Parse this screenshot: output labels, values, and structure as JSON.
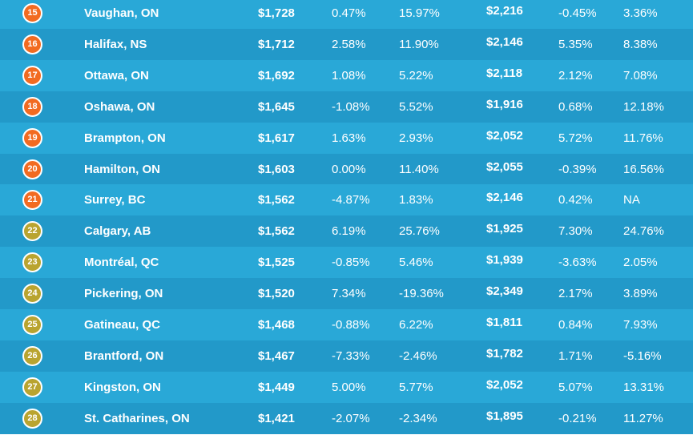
{
  "table": {
    "rows": [
      [
        "15",
        "Vaughan, ON",
        "$1,728",
        "0.47%",
        "15.97%",
        "$2,216",
        "-0.45%",
        "3.36%"
      ],
      [
        "16",
        "Halifax, NS",
        "$1,712",
        "2.58%",
        "11.90%",
        "$2,146",
        "5.35%",
        "8.38%"
      ],
      [
        "17",
        "Ottawa, ON",
        "$1,692",
        "1.08%",
        "5.22%",
        "$2,118",
        "2.12%",
        "7.08%"
      ],
      [
        "18",
        "Oshawa, ON",
        "$1,645",
        "-1.08%",
        "5.52%",
        "$1,916",
        "0.68%",
        "12.18%"
      ],
      [
        "19",
        "Brampton, ON",
        "$1,617",
        "1.63%",
        "2.93%",
        "$2,052",
        "5.72%",
        "11.76%"
      ],
      [
        "20",
        "Hamilton, ON",
        "$1,603",
        "0.00%",
        "11.40%",
        "$2,055",
        "-0.39%",
        "16.56%"
      ],
      [
        "21",
        "Surrey, BC",
        "$1,562",
        "-4.87%",
        "1.83%",
        "$2,146",
        "0.42%",
        "NA"
      ],
      [
        "22",
        "Calgary, AB",
        "$1,562",
        "6.19%",
        "25.76%",
        "$1,925",
        "7.30%",
        "24.76%"
      ],
      [
        "23",
        "Montréal, QC",
        "$1,525",
        "-0.85%",
        "5.46%",
        "$1,939",
        "-3.63%",
        "2.05%"
      ],
      [
        "24",
        "Pickering, ON",
        "$1,520",
        "7.34%",
        "-19.36%",
        "$2,349",
        "2.17%",
        "3.89%"
      ],
      [
        "25",
        "Gatineau, QC",
        "$1,468",
        "-0.88%",
        "6.22%",
        "$1,811",
        "0.84%",
        "7.93%"
      ],
      [
        "26",
        "Brantford, ON",
        "$1,467",
        "-7.33%",
        "-2.46%",
        "$1,782",
        "1.71%",
        "-5.16%"
      ],
      [
        "27",
        "Kingston, ON",
        "$1,449",
        "5.00%",
        "5.77%",
        "$2,052",
        "5.07%",
        "13.31%"
      ],
      [
        "28",
        "St. Catharines, ON",
        "$1,421",
        "-2.07%",
        "-2.34%",
        "$1,895",
        "-0.21%",
        "11.27%"
      ]
    ],
    "badge_colors": [
      "#f26b21",
      "#f26b21",
      "#f26b21",
      "#f26b21",
      "#f26b21",
      "#f26b21",
      "#f26b21",
      "#b9a430",
      "#b9a430",
      "#b9a430",
      "#b9a430",
      "#b9a430",
      "#b9a430",
      "#b9a430"
    ]
  }
}
